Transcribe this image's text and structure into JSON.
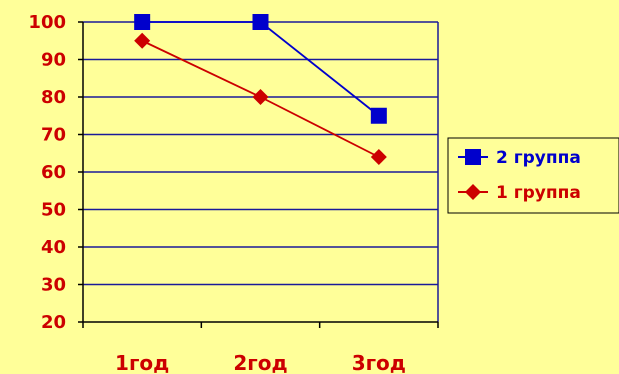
{
  "chart_data": {
    "type": "line",
    "categories": [
      "1год",
      "2год",
      "3год"
    ],
    "ylim": [
      20,
      100
    ],
    "yticks": [
      20,
      30,
      40,
      50,
      60,
      70,
      80,
      90,
      100
    ],
    "grid": true,
    "legend_position": "right",
    "series": [
      {
        "name": "2 группа",
        "values": [
          100,
          100,
          75
        ],
        "color": "#0000cc",
        "marker": "square"
      },
      {
        "name": "1 группа",
        "values": [
          95,
          80,
          64
        ],
        "color": "#cc0000",
        "marker": "diamond"
      }
    ],
    "tick_color": "#cc0000",
    "grid_color": "#1a1a99"
  }
}
